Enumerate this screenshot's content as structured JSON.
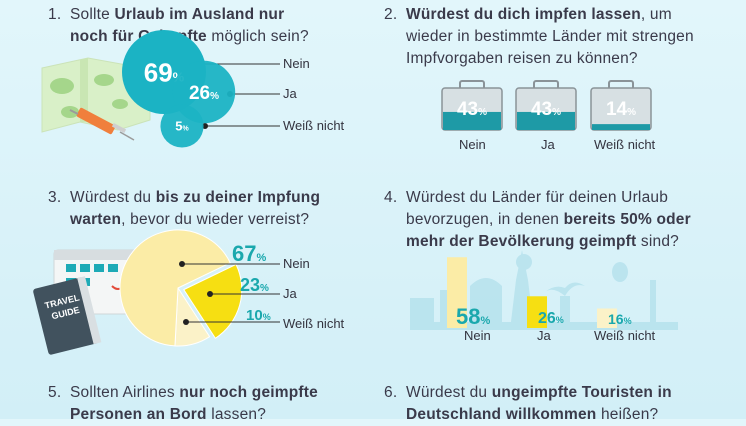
{
  "questions": [
    {
      "num": "1.",
      "line1_pre": "Sollte ",
      "line1_bold": "Urlaub im Ausland nur",
      "line2_bold": "noch für Geimpfte",
      "line2_post": " möglich sein?"
    },
    {
      "num": "2.",
      "line1_bold": "Würdest du dich impfen lassen",
      "line1_post": ", um",
      "line2": "wieder in bestimmte Länder mit strengen",
      "line3": "Impfvorgaben reisen zu können?"
    },
    {
      "num": "3.",
      "line1_pre": "Würdest du ",
      "line1_bold": "bis zu deiner Impfung",
      "line2_bold": "warten",
      "line2_post": ", bevor du wieder verreist?"
    },
    {
      "num": "4.",
      "line1": "Würdest du Länder für deinen Urlaub",
      "line2_pre": "bevorzugen, in denen ",
      "line2_bold": "bereits 50% oder",
      "line3_bold": "mehr der Bevölkerung geimpft",
      "line3_post": " sind?"
    },
    {
      "num": "5.",
      "line1_pre": "Sollten Airlines ",
      "line1_bold": "nur noch geimpfte",
      "line2_bold": "Personen an Bord",
      "line2_post": " lassen?"
    },
    {
      "num": "6.",
      "line1_pre": "Würdest du ",
      "line1_bold": "ungeimpfte Touristen in",
      "line2_bold": "Deutschland willkommen",
      "line2_post": " heißen?"
    }
  ],
  "chart_data": [
    {
      "type": "bubble",
      "question": 1,
      "categories": [
        "Nein",
        "Ja",
        "Weiß nicht"
      ],
      "values": [
        69,
        26,
        5
      ],
      "unit": "%",
      "color": "#1bb3c4"
    },
    {
      "type": "bar",
      "question": 2,
      "categories": [
        "Nein",
        "Ja",
        "Weiß nicht"
      ],
      "values": [
        43,
        43,
        14
      ],
      "unit": "%",
      "color": "#1e9aa6"
    },
    {
      "type": "pie",
      "question": 3,
      "categories": [
        "Nein",
        "Ja",
        "Weiß nicht"
      ],
      "values": [
        67,
        23,
        10
      ],
      "unit": "%",
      "colors": [
        "#fbeca6",
        "#f6df12",
        "#fbf2c8"
      ],
      "label_color": "#1aa8ad"
    },
    {
      "type": "bar",
      "question": 4,
      "categories": [
        "Nein",
        "Ja",
        "Weiß nicht"
      ],
      "values": [
        58,
        26,
        16
      ],
      "unit": "%",
      "colors": [
        "#fbeca6",
        "#f6df12",
        "#fbf2c8"
      ],
      "label_color": "#1aa8ad"
    }
  ],
  "illustrations": {
    "guide_book_line1": "TRAVEL",
    "guide_book_line2": "GUIDE"
  }
}
